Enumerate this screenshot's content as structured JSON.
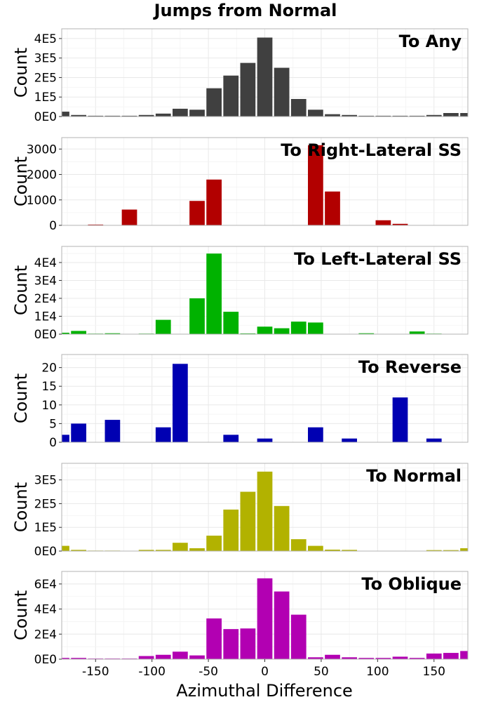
{
  "figure": {
    "title": "Jumps from Normal",
    "xlabel": "Azimuthal Difference",
    "ylabel": "Count"
  },
  "chart_data": {
    "type": "bar",
    "title": "Jumps from Normal",
    "xlabel": "Azimuthal Difference",
    "xlim": [
      -180,
      180
    ],
    "x_ticks": [
      -150,
      -100,
      -50,
      0,
      50,
      100,
      150
    ],
    "x_tick_labels": [
      "-150",
      "-100",
      "-50",
      "0",
      "50",
      "100",
      "150"
    ],
    "bin_centers": [
      -180,
      -165,
      -150,
      -135,
      -120,
      -105,
      -90,
      -75,
      -60,
      -45,
      -30,
      -15,
      0,
      15,
      30,
      45,
      60,
      75,
      90,
      105,
      120,
      135,
      150,
      165,
      180
    ],
    "grid": true,
    "panels": [
      {
        "label": "To Any",
        "ylabel": "Count",
        "color": "#404040",
        "ylim": [
          0,
          450000
        ],
        "y_ticks": [
          0,
          100000,
          200000,
          300000,
          400000
        ],
        "y_tick_labels": [
          "0E0",
          "1E5",
          "2E5",
          "3E5",
          "4E5"
        ],
        "values": [
          25000,
          8000,
          4000,
          4000,
          4000,
          8000,
          15000,
          40000,
          35000,
          145000,
          210000,
          275000,
          405000,
          250000,
          90000,
          35000,
          12000,
          8000,
          4000,
          4000,
          4000,
          4000,
          8000,
          18000,
          18000
        ]
      },
      {
        "label": "To Right-Lateral SS",
        "ylabel": "Count",
        "color": "#b20000",
        "ylim": [
          0,
          3450
        ],
        "y_ticks": [
          0,
          1000,
          2000,
          3000
        ],
        "y_tick_labels": [
          "0",
          "1000",
          "2000",
          "3000"
        ],
        "values": [
          0,
          0,
          30,
          0,
          620,
          0,
          0,
          0,
          960,
          1800,
          0,
          0,
          0,
          0,
          0,
          3150,
          1330,
          0,
          0,
          200,
          60,
          0,
          0,
          0,
          0
        ]
      },
      {
        "label": "To Left-Lateral SS",
        "ylabel": "Count",
        "color": "#00b200",
        "ylim": [
          0,
          49000
        ],
        "y_ticks": [
          0,
          10000,
          20000,
          30000,
          40000
        ],
        "y_tick_labels": [
          "0E0",
          "1E4",
          "2E4",
          "3E4",
          "4E4"
        ],
        "values": [
          800,
          1800,
          300,
          500,
          0,
          300,
          8000,
          200,
          20000,
          45000,
          12500,
          400,
          4200,
          3300,
          7000,
          6500,
          0,
          0,
          500,
          0,
          100,
          1500,
          300,
          0,
          0
        ]
      },
      {
        "label": "To Reverse",
        "ylabel": "Count",
        "color": "#0000b2",
        "ylim": [
          0,
          23.5
        ],
        "y_ticks": [
          0,
          5,
          10,
          15,
          20
        ],
        "y_tick_labels": [
          "0",
          "5",
          "10",
          "15",
          "20"
        ],
        "values": [
          2,
          5,
          0,
          6,
          0,
          0,
          4,
          21,
          0,
          0,
          2,
          0,
          1,
          0,
          0,
          4,
          0,
          1,
          0,
          0,
          12,
          0,
          1,
          0,
          0
        ]
      },
      {
        "label": "To Normal",
        "ylabel": "Count",
        "color": "#b2b200",
        "ylim": [
          0,
          370000
        ],
        "y_ticks": [
          0,
          100000,
          200000,
          300000
        ],
        "y_tick_labels": [
          "0E0",
          "1E5",
          "2E5",
          "3E5"
        ],
        "values": [
          22000,
          5000,
          2000,
          2000,
          1000,
          5000,
          5000,
          35000,
          12000,
          65000,
          175000,
          250000,
          335000,
          190000,
          50000,
          22000,
          6000,
          5000,
          1000,
          1000,
          1000,
          1000,
          4000,
          4000,
          12000
        ]
      },
      {
        "label": "To Oblique",
        "ylabel": "Count",
        "color": "#b200b2",
        "ylim": [
          0,
          70000
        ],
        "y_ticks": [
          0,
          20000,
          40000,
          60000
        ],
        "y_tick_labels": [
          "0E0",
          "2E4",
          "4E4",
          "6E4"
        ],
        "values": [
          1000,
          1000,
          500,
          500,
          500,
          2500,
          3500,
          6000,
          3000,
          32500,
          24000,
          24500,
          64500,
          54000,
          35500,
          1500,
          3500,
          1500,
          1000,
          1000,
          2000,
          1000,
          4500,
          5000,
          6500
        ]
      }
    ]
  }
}
